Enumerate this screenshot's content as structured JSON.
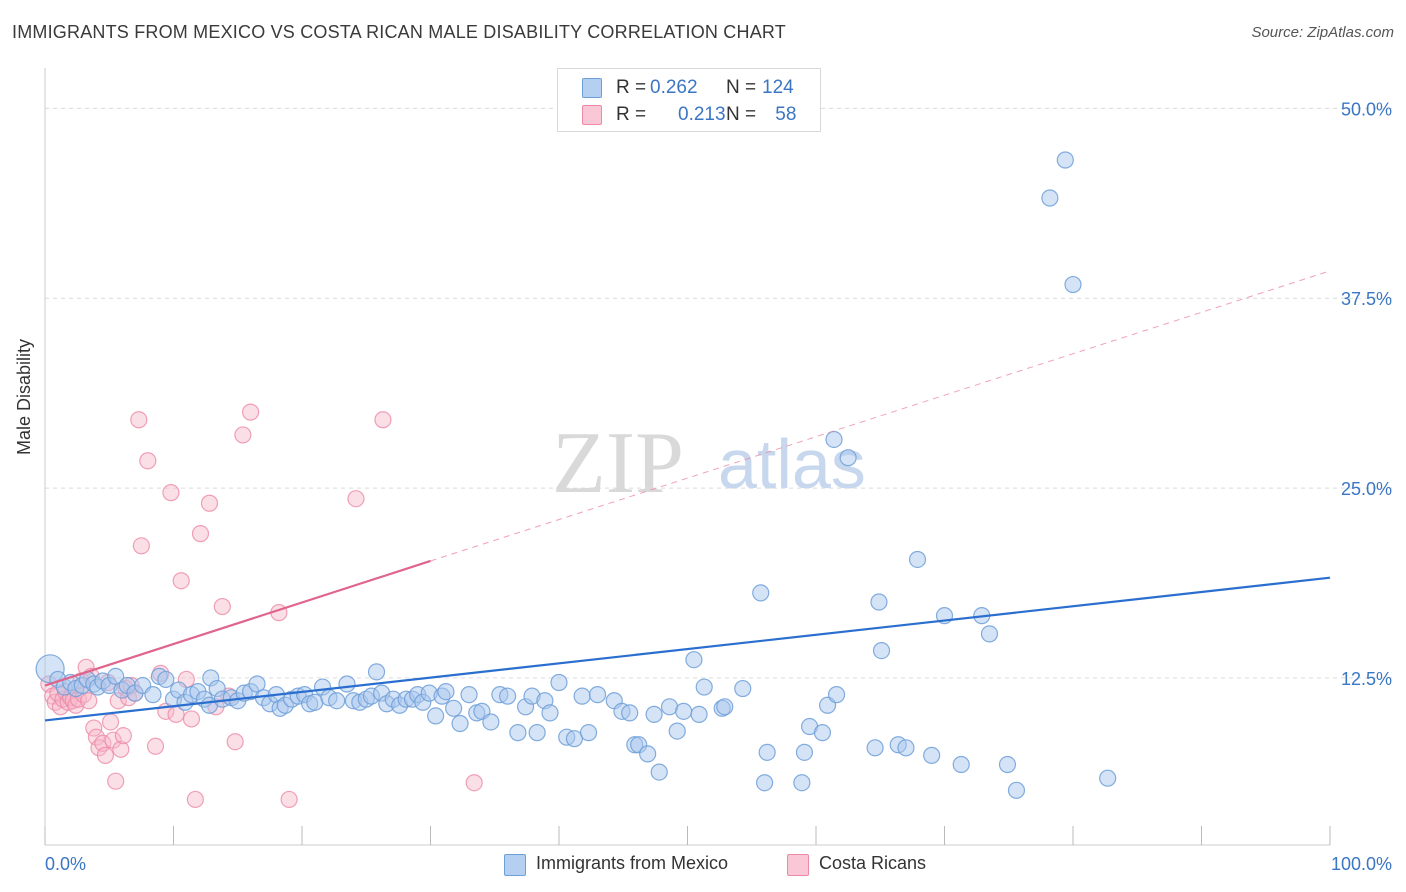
{
  "header": {
    "title": "IMMIGRANTS FROM MEXICO VS COSTA RICAN MALE DISABILITY CORRELATION CHART",
    "source": "Source: ZipAtlas.com"
  },
  "watermark": {
    "zip": "ZIP",
    "atlas": "atlas"
  },
  "colors": {
    "blue_fill": "#a9c7ee",
    "blue_stroke": "#6f9fd8",
    "blue_line": "#2a6fcf",
    "pink_fill": "#f7b9ca",
    "pink_stroke": "#ec8aa6",
    "pink_line": "#e0648c",
    "tick_label": "#3a76c4",
    "grid": "#dcdcdc"
  },
  "legend": {
    "rows": [
      {
        "r_label": "R = ",
        "r_value": "0.262",
        "n_label": "N = ",
        "n_value": "124"
      },
      {
        "r_label": "R = ",
        "r_value": "0.213",
        "n_label": "N = ",
        "n_value": " 58"
      }
    ],
    "bottom": [
      "Immigrants from Mexico",
      "Costa Ricans"
    ]
  },
  "chart_data": {
    "type": "scatter",
    "title": "IMMIGRANTS FROM MEXICO VS COSTA RICAN MALE DISABILITY CORRELATION CHART",
    "xlabel": "",
    "ylabel": "Male Disability",
    "xlim": [
      0,
      100
    ],
    "ylim": [
      1.5,
      52
    ],
    "x_tick_labels": [
      "0.0%",
      "100.0%"
    ],
    "y_ticks": [
      12.5,
      25.0,
      37.5,
      50.0
    ],
    "y_tick_labels": [
      "12.5%",
      "25.0%",
      "37.5%",
      "50.0%"
    ],
    "grid": true,
    "legend_position": "top-center",
    "series": [
      {
        "name": "Immigrants from Mexico",
        "R": 0.262,
        "N": 124,
        "trend": {
          "x": [
            0,
            100
          ],
          "y": [
            9.7,
            19.1
          ]
        },
        "points": [
          [
            0.4,
            13.1
          ],
          [
            1.0,
            12.4
          ],
          [
            1.5,
            11.9
          ],
          [
            2.0,
            12.2
          ],
          [
            2.4,
            11.8
          ],
          [
            2.9,
            12.0
          ],
          [
            3.3,
            12.4
          ],
          [
            3.8,
            12.1
          ],
          [
            4.1,
            11.9
          ],
          [
            4.5,
            12.3
          ],
          [
            5.0,
            12.0
          ],
          [
            5.5,
            12.6
          ],
          [
            6.0,
            11.7
          ],
          [
            6.4,
            12.0
          ],
          [
            7.0,
            11.5
          ],
          [
            7.6,
            12.0
          ],
          [
            8.4,
            11.4
          ],
          [
            8.9,
            12.6
          ],
          [
            9.4,
            12.4
          ],
          [
            10.0,
            11.1
          ],
          [
            10.4,
            11.7
          ],
          [
            10.9,
            10.9
          ],
          [
            11.4,
            11.4
          ],
          [
            11.9,
            11.6
          ],
          [
            12.4,
            11.1
          ],
          [
            12.8,
            10.7
          ],
          [
            12.9,
            12.5
          ],
          [
            13.4,
            11.8
          ],
          [
            13.8,
            11.1
          ],
          [
            14.5,
            11.2
          ],
          [
            15.0,
            11.0
          ],
          [
            15.5,
            11.5
          ],
          [
            16.0,
            11.6
          ],
          [
            16.5,
            12.1
          ],
          [
            17.0,
            11.2
          ],
          [
            17.5,
            10.8
          ],
          [
            18.0,
            11.4
          ],
          [
            18.3,
            10.5
          ],
          [
            18.7,
            10.7
          ],
          [
            19.2,
            11.1
          ],
          [
            19.7,
            11.3
          ],
          [
            20.2,
            11.4
          ],
          [
            20.6,
            10.8
          ],
          [
            21.0,
            10.9
          ],
          [
            21.6,
            11.9
          ],
          [
            22.1,
            11.2
          ],
          [
            22.7,
            11.0
          ],
          [
            23.5,
            12.1
          ],
          [
            24.0,
            11.0
          ],
          [
            24.5,
            10.9
          ],
          [
            25.0,
            11.1
          ],
          [
            25.4,
            11.3
          ],
          [
            25.8,
            12.9
          ],
          [
            26.2,
            11.5
          ],
          [
            26.6,
            10.8
          ],
          [
            27.1,
            11.1
          ],
          [
            27.6,
            10.7
          ],
          [
            28.1,
            11.1
          ],
          [
            28.6,
            11.1
          ],
          [
            29.0,
            11.4
          ],
          [
            29.4,
            10.9
          ],
          [
            29.9,
            11.5
          ],
          [
            30.4,
            10.0
          ],
          [
            30.9,
            11.3
          ],
          [
            31.2,
            11.6
          ],
          [
            31.8,
            10.5
          ],
          [
            32.3,
            9.5
          ],
          [
            33.0,
            11.4
          ],
          [
            33.6,
            10.2
          ],
          [
            34.0,
            10.3
          ],
          [
            34.7,
            9.6
          ],
          [
            35.4,
            11.4
          ],
          [
            36.0,
            11.3
          ],
          [
            36.8,
            8.9
          ],
          [
            37.4,
            10.6
          ],
          [
            37.9,
            11.3
          ],
          [
            38.3,
            8.9
          ],
          [
            38.9,
            11.0
          ],
          [
            39.3,
            10.2
          ],
          [
            40.0,
            12.2
          ],
          [
            40.6,
            8.6
          ],
          [
            41.2,
            8.5
          ],
          [
            41.8,
            11.3
          ],
          [
            42.3,
            8.9
          ],
          [
            43.0,
            11.4
          ],
          [
            44.3,
            11.0
          ],
          [
            44.9,
            10.3
          ],
          [
            45.5,
            10.2
          ],
          [
            45.9,
            8.1
          ],
          [
            46.2,
            8.1
          ],
          [
            46.9,
            7.5
          ],
          [
            47.4,
            10.1
          ],
          [
            47.8,
            6.3
          ],
          [
            48.6,
            10.6
          ],
          [
            49.2,
            9.0
          ],
          [
            49.7,
            10.3
          ],
          [
            50.5,
            13.7
          ],
          [
            50.9,
            10.1
          ],
          [
            51.3,
            11.9
          ],
          [
            52.7,
            10.5
          ],
          [
            52.9,
            10.6
          ],
          [
            54.3,
            11.8
          ],
          [
            55.7,
            18.1
          ],
          [
            56.0,
            5.6
          ],
          [
            56.2,
            7.6
          ],
          [
            58.9,
            5.6
          ],
          [
            59.1,
            7.6
          ],
          [
            59.5,
            9.3
          ],
          [
            60.5,
            8.9
          ],
          [
            60.9,
            10.7
          ],
          [
            61.4,
            28.2
          ],
          [
            61.6,
            11.4
          ],
          [
            62.5,
            27.0
          ],
          [
            64.6,
            7.9
          ],
          [
            64.9,
            17.5
          ],
          [
            65.1,
            14.3
          ],
          [
            66.4,
            8.1
          ],
          [
            67.0,
            7.9
          ],
          [
            67.9,
            20.3
          ],
          [
            69.0,
            7.4
          ],
          [
            70.0,
            16.6
          ],
          [
            71.3,
            6.8
          ],
          [
            72.9,
            16.6
          ],
          [
            73.5,
            15.4
          ],
          [
            74.9,
            6.8
          ],
          [
            75.6,
            5.1
          ],
          [
            78.2,
            44.1
          ],
          [
            79.4,
            46.6
          ],
          [
            80.0,
            38.4
          ],
          [
            82.7,
            5.9
          ]
        ]
      },
      {
        "name": "Costa Ricans",
        "R": 0.213,
        "N": 58,
        "trend": {
          "x": [
            0,
            30
          ],
          "y": [
            12.0,
            20.2
          ],
          "dashed_x": [
            30,
            100
          ],
          "dashed_y": [
            20.2,
            39.3
          ]
        },
        "points": [
          [
            0.3,
            12.1
          ],
          [
            0.6,
            11.3
          ],
          [
            0.8,
            10.9
          ],
          [
            1.0,
            11.5
          ],
          [
            1.2,
            10.6
          ],
          [
            1.4,
            11.1
          ],
          [
            1.6,
            11.6
          ],
          [
            1.8,
            10.9
          ],
          [
            2.0,
            11.2
          ],
          [
            2.2,
            11.0
          ],
          [
            2.4,
            10.7
          ],
          [
            2.6,
            11.1
          ],
          [
            2.8,
            12.3
          ],
          [
            3.0,
            11.4
          ],
          [
            3.2,
            13.2
          ],
          [
            3.4,
            11.0
          ],
          [
            3.6,
            12.6
          ],
          [
            3.8,
            9.2
          ],
          [
            4.0,
            8.6
          ],
          [
            4.2,
            7.9
          ],
          [
            4.5,
            8.2
          ],
          [
            4.7,
            7.4
          ],
          [
            4.9,
            12.2
          ],
          [
            5.1,
            9.6
          ],
          [
            5.3,
            8.4
          ],
          [
            5.5,
            5.7
          ],
          [
            5.7,
            11.0
          ],
          [
            5.9,
            7.8
          ],
          [
            6.1,
            8.7
          ],
          [
            6.3,
            11.8
          ],
          [
            6.5,
            11.2
          ],
          [
            6.7,
            12.0
          ],
          [
            7.0,
            11.5
          ],
          [
            7.3,
            29.5
          ],
          [
            7.5,
            21.2
          ],
          [
            8.0,
            26.8
          ],
          [
            8.6,
            8.0
          ],
          [
            9.0,
            12.8
          ],
          [
            9.4,
            10.3
          ],
          [
            9.8,
            24.7
          ],
          [
            10.2,
            10.1
          ],
          [
            10.6,
            18.9
          ],
          [
            11.0,
            12.4
          ],
          [
            11.4,
            9.8
          ],
          [
            11.7,
            4.5
          ],
          [
            12.1,
            22.0
          ],
          [
            12.8,
            24.0
          ],
          [
            13.3,
            10.6
          ],
          [
            13.8,
            17.2
          ],
          [
            14.3,
            11.3
          ],
          [
            14.8,
            8.3
          ],
          [
            15.4,
            28.5
          ],
          [
            16.0,
            30.0
          ],
          [
            18.2,
            16.8
          ],
          [
            19.0,
            4.5
          ],
          [
            24.2,
            24.3
          ],
          [
            26.3,
            29.5
          ],
          [
            33.4,
            5.6
          ]
        ]
      }
    ]
  }
}
